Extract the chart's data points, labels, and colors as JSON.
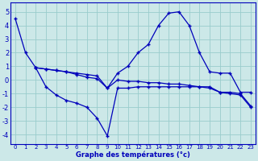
{
  "xlabel": "Graphe des températures (°c)",
  "background_color": "#cce8e8",
  "grid_color": "#99cccc",
  "line_color": "#0000bb",
  "xlim": [
    -0.5,
    23.5
  ],
  "ylim": [
    -4.7,
    5.7
  ],
  "xticks": [
    0,
    1,
    2,
    3,
    4,
    5,
    6,
    7,
    8,
    9,
    10,
    11,
    12,
    13,
    14,
    15,
    16,
    17,
    18,
    19,
    20,
    21,
    22,
    23
  ],
  "yticks": [
    -4,
    -3,
    -2,
    -1,
    0,
    1,
    2,
    3,
    4,
    5
  ],
  "series": [
    {
      "x": [
        0,
        1,
        2,
        3,
        4,
        5,
        6,
        7,
        8,
        9,
        10,
        11,
        12,
        13,
        14,
        15,
        16,
        17,
        18,
        19,
        20,
        21,
        22,
        23
      ],
      "y": [
        4.5,
        2.0,
        0.9,
        0.8,
        0.7,
        0.6,
        0.5,
        0.4,
        0.3,
        -0.6,
        0.5,
        1.0,
        2.0,
        2.6,
        4.0,
        4.9,
        5.0,
        4.0,
        2.0,
        0.6,
        0.5,
        0.5,
        -0.9,
        -0.9
      ]
    },
    {
      "x": [
        2,
        3,
        4,
        5,
        6,
        7,
        8,
        9,
        10,
        11,
        12,
        13,
        14,
        15,
        16,
        17,
        18,
        19,
        20,
        21,
        22,
        23
      ],
      "y": [
        0.9,
        -0.5,
        -1.1,
        -1.5,
        -1.7,
        -2.0,
        -2.8,
        -4.1,
        -0.6,
        -0.6,
        -0.5,
        -0.5,
        -0.5,
        -0.5,
        -0.5,
        -0.5,
        -0.5,
        -0.5,
        -0.9,
        -0.9,
        -1.0,
        -1.9
      ]
    },
    {
      "x": [
        2,
        3,
        4,
        5,
        6,
        7,
        8,
        9,
        10,
        11,
        12,
        13,
        14,
        15,
        16,
        17,
        18,
        19,
        20,
        21,
        22,
        23
      ],
      "y": [
        0.9,
        0.8,
        0.7,
        0.6,
        0.4,
        0.2,
        0.1,
        -0.6,
        0.0,
        -0.1,
        -0.1,
        -0.2,
        -0.2,
        -0.3,
        -0.3,
        -0.4,
        -0.5,
        -0.6,
        -0.9,
        -1.0,
        -1.1,
        -2.0
      ]
    }
  ]
}
